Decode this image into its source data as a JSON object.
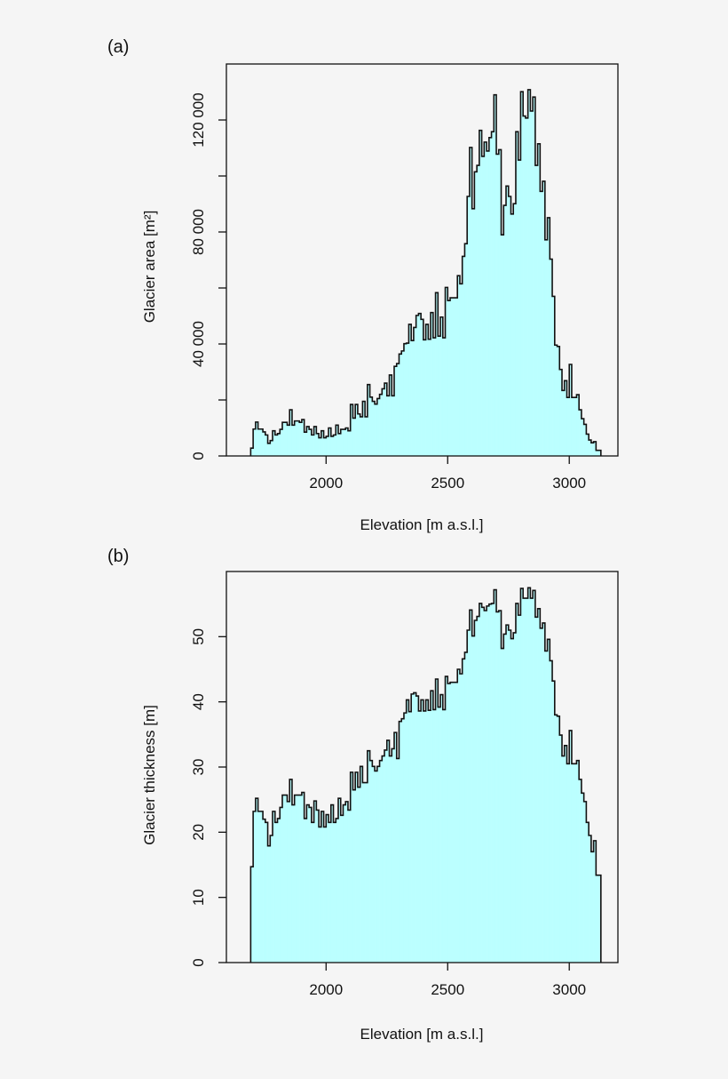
{
  "chart_data": [
    {
      "type": "bar",
      "panel_label": "(a)",
      "xlabel": "Elevation [m a.s.l.]",
      "ylabel": "Glacier area [m²]",
      "xlim": [
        1590,
        3200
      ],
      "ylim": [
        0,
        140000
      ],
      "x_ticks": [
        2000,
        2500,
        3000
      ],
      "x_tick_labels": [
        "2000",
        "2500",
        "3000"
      ],
      "y_ticks": [
        0,
        20000,
        40000,
        60000,
        80000,
        100000,
        120000
      ],
      "y_tick_labels": [
        {
          "value": 0,
          "label": "0"
        },
        {
          "value": 40000,
          "label": "40 000"
        },
        {
          "value": 80000,
          "label": "80 000"
        },
        {
          "value": 120000,
          "label": "120 000"
        }
      ],
      "bin_width": 10,
      "fill_color": "#bbffff",
      "line_color": "#111111",
      "grid": false,
      "x": [
        1690,
        1700,
        1710,
        1720,
        1730,
        1740,
        1750,
        1760,
        1770,
        1780,
        1790,
        1800,
        1810,
        1820,
        1830,
        1840,
        1850,
        1860,
        1870,
        1880,
        1890,
        1900,
        1910,
        1920,
        1930,
        1940,
        1950,
        1960,
        1970,
        1980,
        1990,
        2000,
        2010,
        2020,
        2030,
        2040,
        2050,
        2060,
        2070,
        2080,
        2090,
        2100,
        2110,
        2120,
        2130,
        2140,
        2150,
        2160,
        2170,
        2180,
        2190,
        2200,
        2210,
        2220,
        2230,
        2240,
        2250,
        2260,
        2270,
        2280,
        2290,
        2300,
        2310,
        2320,
        2330,
        2340,
        2350,
        2360,
        2370,
        2380,
        2390,
        2400,
        2410,
        2420,
        2430,
        2440,
        2450,
        2460,
        2470,
        2480,
        2490,
        2500,
        2510,
        2520,
        2530,
        2540,
        2550,
        2560,
        2570,
        2580,
        2590,
        2600,
        2610,
        2620,
        2630,
        2640,
        2650,
        2660,
        2670,
        2680,
        2690,
        2700,
        2710,
        2720,
        2730,
        2740,
        2750,
        2760,
        2770,
        2780,
        2790,
        2800,
        2810,
        2820,
        2830,
        2840,
        2850,
        2860,
        2870,
        2880,
        2890,
        2900,
        2910,
        2920,
        2930,
        2940,
        2950,
        2960,
        2970,
        2980,
        2990,
        3000,
        3010,
        3020,
        3030,
        3040,
        3050,
        3060,
        3070,
        3080,
        3090,
        3100,
        3110,
        3120
      ],
      "values": [
        2800,
        9600,
        12100,
        9600,
        9600,
        8600,
        7500,
        4500,
        5500,
        9000,
        7500,
        8000,
        9500,
        12000,
        12000,
        11000,
        16500,
        11000,
        12500,
        12500,
        12000,
        13000,
        8500,
        10500,
        9500,
        7500,
        10500,
        8000,
        6500,
        9000,
        6500,
        7000,
        10000,
        7000,
        7500,
        11000,
        8000,
        9500,
        9500,
        10000,
        9000,
        18400,
        13500,
        18400,
        15000,
        14000,
        19500,
        14000,
        25500,
        21000,
        19500,
        18500,
        20500,
        22000,
        24000,
        26000,
        21500,
        28900,
        21500,
        32000,
        33000,
        36400,
        37500,
        40100,
        40300,
        47000,
        41200,
        45900,
        50200,
        50900,
        48800,
        41500,
        47000,
        41700,
        51200,
        42200,
        58300,
        42800,
        49600,
        42200,
        60200,
        55500,
        56500,
        56500,
        56500,
        64400,
        61500,
        71300,
        75800,
        92700,
        110200,
        88300,
        101500,
        103800,
        116300,
        107000,
        112100,
        108900,
        113700,
        115800,
        129000,
        107800,
        109400,
        79000,
        89500,
        96400,
        92700,
        86400,
        90100,
        115800,
        105700,
        130100,
        121400,
        120700,
        130800,
        123200,
        128200,
        103800,
        111500,
        94500,
        98100,
        77200,
        85100,
        70300,
        57000,
        39600,
        39100,
        30900,
        23400,
        26900,
        20900,
        32700,
        20900,
        20900,
        21900,
        16500,
        13300,
        11300,
        7800,
        5700,
        4700,
        5100,
        2000,
        2000
      ]
    },
    {
      "type": "bar",
      "panel_label": "(b)",
      "xlabel": "Elevation [m a.s.l.]",
      "ylabel": "Glacier thickness [m]",
      "xlim": [
        1590,
        3200
      ],
      "ylim": [
        0,
        60
      ],
      "x_ticks": [
        2000,
        2500,
        3000
      ],
      "x_tick_labels": [
        "2000",
        "2500",
        "3000"
      ],
      "y_ticks": [
        0,
        10,
        20,
        30,
        40,
        50
      ],
      "y_tick_labels": [
        {
          "value": 0,
          "label": "0"
        },
        {
          "value": 10,
          "label": "10"
        },
        {
          "value": 20,
          "label": "20"
        },
        {
          "value": 30,
          "label": "30"
        },
        {
          "value": 40,
          "label": "40"
        },
        {
          "value": 50,
          "label": "50"
        }
      ],
      "bin_width": 10,
      "fill_color": "#bbffff",
      "line_color": "#111111",
      "grid": false,
      "x": [
        1690,
        1700,
        1710,
        1720,
        1730,
        1740,
        1750,
        1760,
        1770,
        1780,
        1790,
        1800,
        1810,
        1820,
        1830,
        1840,
        1850,
        1860,
        1870,
        1880,
        1890,
        1900,
        1910,
        1920,
        1930,
        1940,
        1950,
        1960,
        1970,
        1980,
        1990,
        2000,
        2010,
        2020,
        2030,
        2040,
        2050,
        2060,
        2070,
        2080,
        2090,
        2100,
        2110,
        2120,
        2130,
        2140,
        2150,
        2160,
        2170,
        2180,
        2190,
        2200,
        2210,
        2220,
        2230,
        2240,
        2250,
        2260,
        2270,
        2280,
        2290,
        2300,
        2310,
        2320,
        2330,
        2340,
        2350,
        2360,
        2370,
        2380,
        2390,
        2400,
        2410,
        2420,
        2430,
        2440,
        2450,
        2460,
        2470,
        2480,
        2490,
        2500,
        2510,
        2520,
        2530,
        2540,
        2550,
        2560,
        2570,
        2580,
        2590,
        2600,
        2610,
        2620,
        2630,
        2640,
        2650,
        2660,
        2670,
        2680,
        2690,
        2700,
        2710,
        2720,
        2730,
        2740,
        2750,
        2760,
        2770,
        2780,
        2790,
        2800,
        2810,
        2820,
        2830,
        2840,
        2850,
        2860,
        2870,
        2880,
        2890,
        2900,
        2910,
        2920,
        2930,
        2940,
        2950,
        2960,
        2970,
        2980,
        2990,
        3000,
        3010,
        3020,
        3030,
        3040,
        3050,
        3060,
        3070,
        3080,
        3090,
        3100,
        3110,
        3120
      ],
      "values": [
        14.7,
        23.2,
        25.2,
        23.2,
        23.2,
        22.0,
        21.5,
        17.9,
        19.5,
        23.2,
        21.5,
        22.1,
        23.8,
        25.7,
        25.7,
        24.7,
        28.1,
        24.2,
        25.7,
        25.7,
        25.7,
        26.1,
        22.1,
        24.2,
        23.8,
        21.5,
        24.8,
        23.4,
        20.8,
        23.2,
        20.8,
        22.7,
        21.5,
        24.2,
        21.5,
        22.1,
        25.2,
        22.6,
        24.2,
        24.7,
        23.4,
        29.2,
        26.5,
        29.2,
        26.9,
        30.1,
        27.6,
        27.6,
        32.5,
        31.0,
        30.1,
        29.4,
        30.1,
        31.0,
        31.7,
        32.6,
        34.1,
        31.7,
        32.8,
        35.3,
        31.3,
        37.0,
        37.4,
        38.3,
        40.3,
        38.5,
        41.2,
        41.4,
        40.9,
        38.6,
        40.3,
        38.6,
        40.3,
        38.7,
        41.7,
        38.8,
        43.5,
        39.2,
        41.1,
        38.8,
        43.9,
        42.8,
        43.0,
        43.0,
        43.0,
        45.0,
        44.3,
        46.6,
        47.6,
        51.0,
        54.1,
        50.1,
        52.5,
        53.1,
        55.1,
        54.5,
        54.0,
        54.7,
        55.0,
        55.1,
        57.2,
        53.8,
        54.0,
        48.2,
        50.4,
        51.8,
        51.0,
        49.7,
        50.6,
        55.1,
        53.3,
        57.4,
        55.9,
        55.9,
        57.5,
        55.9,
        57.1,
        53.0,
        54.3,
        51.3,
        52.1,
        47.8,
        49.6,
        46.3,
        43.2,
        38.0,
        37.8,
        34.9,
        31.7,
        33.3,
        30.5,
        35.6,
        30.5,
        30.5,
        31.0,
        28.1,
        26.0,
        24.7,
        21.5,
        19.5,
        17.0,
        18.7,
        13.4,
        13.4
      ]
    }
  ]
}
